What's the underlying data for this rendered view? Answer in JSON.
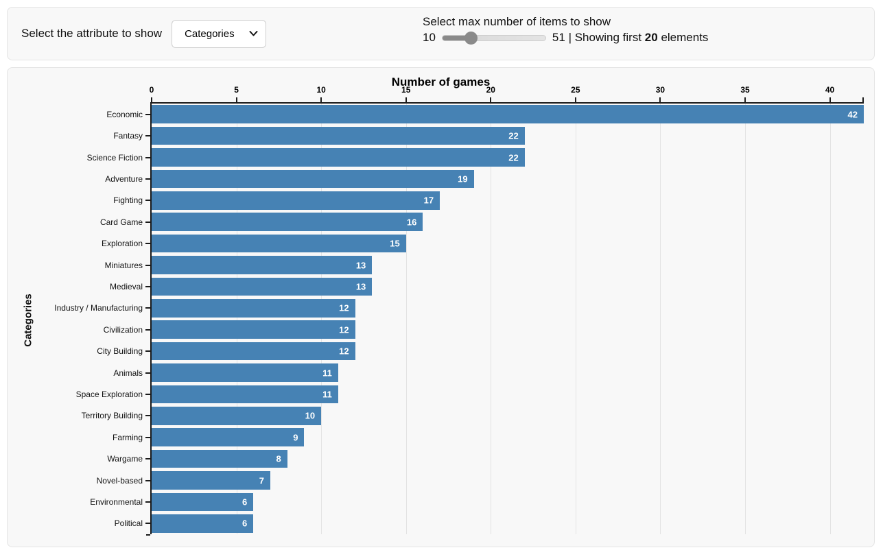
{
  "header": {
    "attribute_label": "Select the attribute to show",
    "attribute_selected": "Categories",
    "max_items_label": "Select max number of items to show",
    "slider": {
      "min": 10,
      "max": 51,
      "value": 20,
      "fill_percent": 24.4
    },
    "slider_min_label": "10",
    "slider_max_label": "51",
    "showing_prefix": "| Showing first",
    "showing_count": "20",
    "showing_suffix": "elements"
  },
  "chart_data": {
    "type": "bar",
    "orientation": "horizontal",
    "title": "Number of games",
    "ylabel": "Categories",
    "categories": [
      "Economic",
      "Fantasy",
      "Science Fiction",
      "Adventure",
      "Fighting",
      "Card Game",
      "Exploration",
      "Miniatures",
      "Medieval",
      "Industry / Manufacturing",
      "Civilization",
      "City Building",
      "Animals",
      "Space Exploration",
      "Territory Building",
      "Farming",
      "Wargame",
      "Novel-based",
      "Environmental",
      "Political"
    ],
    "values": [
      42,
      22,
      22,
      19,
      17,
      16,
      15,
      13,
      13,
      12,
      12,
      12,
      11,
      11,
      10,
      9,
      8,
      7,
      6,
      6
    ],
    "xlim": [
      0,
      42
    ],
    "xticks": [
      0,
      5,
      10,
      15,
      20,
      25,
      30,
      35,
      40
    ],
    "grid": true,
    "legend": "none",
    "bar_color": "#4682b4",
    "value_label_color": "#ffffff"
  }
}
